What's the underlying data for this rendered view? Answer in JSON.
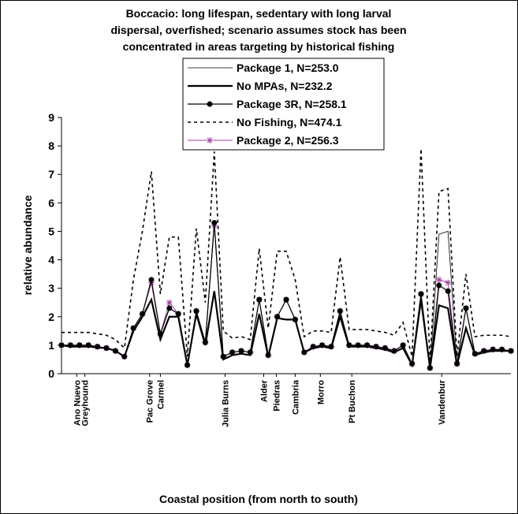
{
  "chart_data": {
    "type": "line",
    "title": [
      "Boccacio: long lifespan, sedentary with long larval",
      "dispersal, overfished; scenario assumes stock has been",
      "concentrated in areas targeting by historical fishing"
    ],
    "x_label": "Coastal position (from north to south)",
    "y_label": "relative abundance",
    "x": [
      0,
      1,
      2,
      3,
      4,
      5,
      6,
      7,
      8,
      9,
      10,
      11,
      12,
      13,
      14,
      15,
      16,
      17,
      18,
      19,
      20,
      21,
      22,
      23,
      24,
      25,
      26,
      27,
      28,
      29,
      30,
      31,
      32,
      33,
      34,
      35,
      36,
      37,
      38,
      39,
      40,
      41,
      42,
      43,
      44,
      45,
      46,
      47,
      48,
      49,
      50
    ],
    "xlim": [
      0,
      50
    ],
    "xticks": [
      {
        "value": 1.7,
        "label": "Ano Nuevo"
      },
      {
        "value": 2.6,
        "label": "Greyhound"
      },
      {
        "value": 9.8,
        "label": "Pac Grove"
      },
      {
        "value": 11,
        "label": "Carmel"
      },
      {
        "value": 18.2,
        "label": "Julia Burns"
      },
      {
        "value": 22.5,
        "label": "Alder"
      },
      {
        "value": 23.9,
        "label": "Piedras"
      },
      {
        "value": 26,
        "label": "Cambria"
      },
      {
        "value": 28.8,
        "label": "Morro"
      },
      {
        "value": 32.3,
        "label": "Pt Buchon"
      },
      {
        "value": 42.3,
        "label": "Vandenbur"
      }
    ],
    "ylim": [
      0,
      9
    ],
    "yticks": [
      0,
      1,
      2,
      3,
      4,
      5,
      6,
      7,
      8,
      9
    ],
    "series": [
      {
        "name": "Package 1, N=253.0",
        "color": "#000000",
        "width": 0.8,
        "dash": false,
        "marker": "none",
        "values": [
          1.0,
          1.0,
          1.0,
          1.0,
          0.95,
          0.9,
          0.8,
          0.6,
          1.6,
          2.1,
          3.2,
          1.4,
          2.3,
          2.1,
          0.3,
          2.2,
          1.1,
          5.2,
          0.6,
          0.75,
          0.8,
          0.75,
          2.6,
          0.65,
          2.0,
          2.6,
          1.9,
          0.75,
          0.95,
          1.0,
          0.95,
          2.2,
          1.0,
          1.0,
          1.0,
          0.95,
          0.9,
          0.8,
          1.0,
          0.35,
          2.8,
          0.2,
          4.9,
          5.0,
          0.35,
          2.3,
          0.7,
          0.8,
          0.85,
          0.85,
          0.8
        ]
      },
      {
        "name": "No MPAs, N=232.2",
        "color": "#000000",
        "width": 2.2,
        "dash": false,
        "marker": "none",
        "values": [
          1.0,
          0.95,
          0.95,
          0.95,
          0.92,
          0.9,
          0.8,
          0.6,
          1.5,
          2.0,
          2.6,
          1.2,
          2.0,
          2.0,
          0.3,
          2.1,
          1.0,
          2.9,
          0.5,
          0.65,
          0.7,
          0.65,
          2.1,
          0.6,
          1.95,
          1.9,
          1.9,
          0.75,
          0.9,
          0.95,
          0.9,
          2.0,
          0.95,
          0.95,
          0.95,
          0.9,
          0.85,
          0.75,
          0.9,
          0.3,
          2.6,
          0.2,
          2.4,
          2.3,
          0.3,
          1.6,
          0.65,
          0.75,
          0.8,
          0.8,
          0.8
        ]
      },
      {
        "name": "Package 3R, N=258.1",
        "color": "#000000",
        "width": 1.2,
        "dash": false,
        "marker": "circle",
        "values": [
          1.0,
          1.0,
          1.0,
          1.0,
          0.95,
          0.9,
          0.8,
          0.6,
          1.6,
          2.1,
          3.3,
          1.4,
          2.3,
          2.1,
          0.3,
          2.2,
          1.1,
          5.3,
          0.6,
          0.75,
          0.8,
          0.75,
          2.6,
          0.65,
          2.0,
          2.6,
          1.9,
          0.75,
          0.95,
          1.0,
          0.95,
          2.2,
          1.0,
          1.0,
          1.0,
          0.95,
          0.9,
          0.8,
          1.0,
          0.35,
          2.8,
          0.2,
          3.1,
          2.9,
          0.35,
          2.3,
          0.7,
          0.8,
          0.85,
          0.85,
          0.8
        ]
      },
      {
        "name": "No Fishing, N=474.1",
        "color": "#000000",
        "width": 1.6,
        "dash": true,
        "marker": "none",
        "values": [
          1.45,
          1.45,
          1.45,
          1.45,
          1.4,
          1.35,
          1.2,
          0.9,
          3.3,
          5.0,
          7.1,
          2.8,
          4.8,
          4.8,
          0.6,
          5.1,
          2.5,
          7.8,
          1.5,
          1.25,
          1.3,
          1.2,
          4.4,
          1.6,
          4.3,
          4.3,
          3.3,
          1.3,
          1.5,
          1.5,
          1.45,
          4.1,
          1.55,
          1.55,
          1.55,
          1.5,
          1.45,
          1.35,
          1.8,
          0.6,
          7.9,
          0.4,
          6.4,
          6.5,
          0.6,
          3.5,
          1.3,
          1.35,
          1.35,
          1.35,
          1.3
        ]
      },
      {
        "name": "Package 2, N=256.3",
        "color": "#a040a0",
        "width": 1,
        "dash": false,
        "marker": "star",
        "values": [
          1.0,
          1.0,
          1.0,
          1.0,
          0.95,
          0.9,
          0.8,
          0.6,
          1.6,
          2.1,
          3.2,
          1.4,
          2.5,
          2.1,
          0.3,
          2.2,
          1.1,
          5.2,
          0.6,
          0.75,
          0.8,
          0.75,
          2.6,
          0.65,
          2.0,
          2.6,
          1.9,
          0.75,
          0.95,
          1.0,
          0.95,
          2.2,
          1.0,
          1.0,
          1.0,
          0.95,
          0.9,
          0.8,
          1.0,
          0.35,
          2.8,
          0.2,
          3.3,
          3.2,
          0.35,
          2.3,
          0.7,
          0.8,
          0.85,
          0.85,
          0.8
        ]
      }
    ]
  }
}
